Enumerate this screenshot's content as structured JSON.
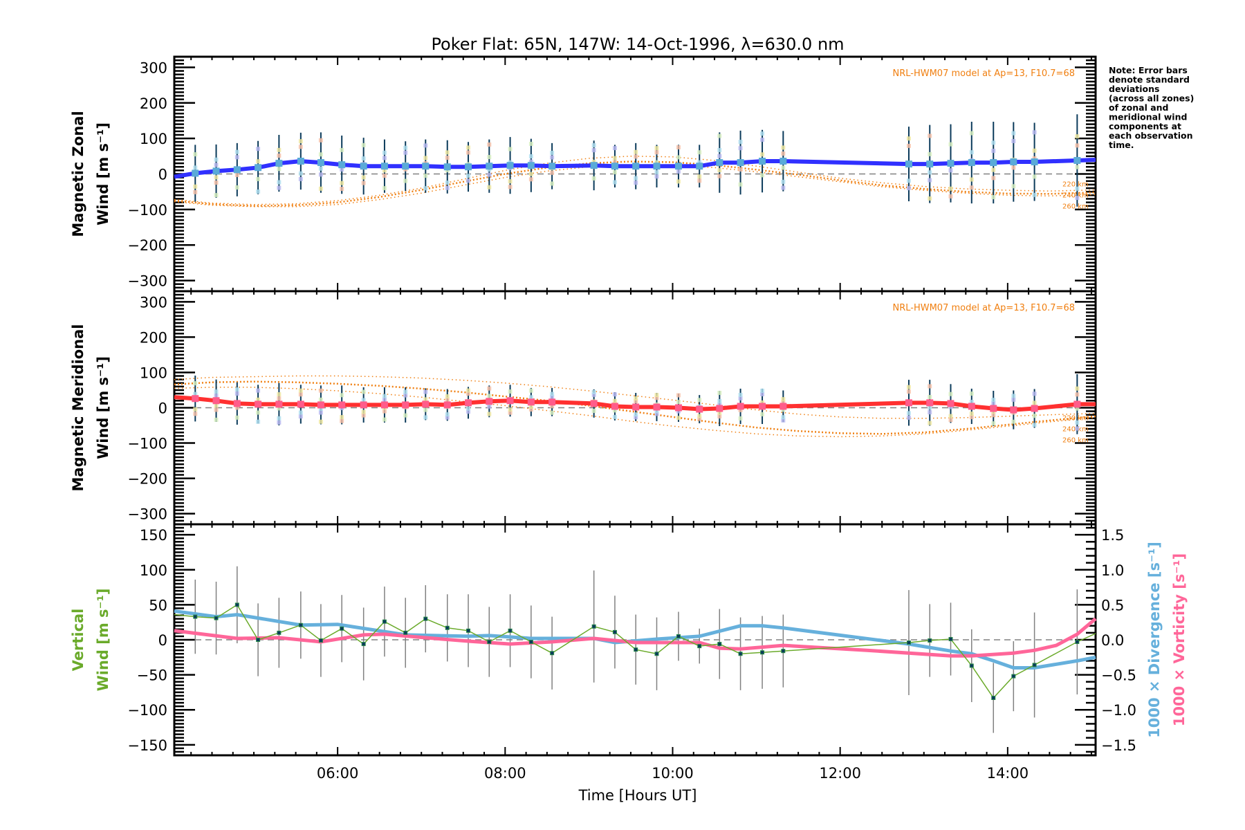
{
  "chart_data": {
    "type": "line",
    "title": "Poker Flat: 65N, 147W: 14-Oct-1996, λ=630.0 nm",
    "xlabel": "Time [Hours UT]",
    "xlim": [
      4.05,
      15.05
    ],
    "xticks": [
      {
        "value": 6,
        "label": "06:00"
      },
      {
        "value": 8,
        "label": "08:00"
      },
      {
        "value": 10,
        "label": "10:00"
      },
      {
        "value": 12,
        "label": "12:00"
      },
      {
        "value": 14,
        "label": "14:00"
      }
    ],
    "note": [
      "Note: Error bars",
      "denote standard",
      "deviations",
      "(across all zones)",
      "of zonal and",
      "meridional wind",
      "components at",
      "each observation",
      "time."
    ],
    "colors": {
      "zonal": "#3030ff",
      "meridional": "#ff3030",
      "vertical": "#6aaa2a",
      "divergence": "#66b0dc",
      "vorticity": "#ff6699",
      "model": "#f07f10",
      "errorbar_horizontal": "#0a3a5a",
      "errorbar_vertical": "#808080",
      "point": "#5aaad8",
      "point_meridional": "#ff5c8a",
      "zero_line": "#808080"
    },
    "panels": [
      {
        "id": "zonal",
        "ylabel_line1": "Magnetic Zonal",
        "ylabel_line2": "Wind [m s⁻¹]",
        "ylim": [
          -330,
          330
        ],
        "yticks": [
          -300,
          -200,
          -100,
          0,
          100,
          200,
          300
        ],
        "model_label": "NRL-HWM07 model at Ap=13, F10.7=68",
        "model_altitudes": [
          "220 km",
          "240 km",
          "260 km"
        ],
        "series": {
          "name": "Magnetic Zonal Wind",
          "x": [
            4.05,
            4.3,
            4.55,
            4.8,
            5.05,
            5.3,
            5.56,
            5.8,
            6.05,
            6.31,
            6.56,
            6.81,
            7.05,
            7.31,
            7.56,
            7.81,
            8.06,
            8.31,
            8.56,
            9.06,
            9.31,
            9.56,
            9.81,
            10.07,
            10.32,
            10.56,
            10.81,
            11.07,
            11.32,
            12.82,
            13.07,
            13.32,
            13.57,
            13.83,
            14.07,
            14.32,
            14.83,
            15.05
          ],
          "y": [
            -8,
            2,
            8,
            12,
            18,
            30,
            36,
            32,
            26,
            22,
            22,
            22,
            22,
            20,
            20,
            22,
            24,
            24,
            22,
            24,
            22,
            22,
            22,
            22,
            22,
            32,
            32,
            36,
            36,
            28,
            28,
            30,
            32,
            32,
            34,
            34,
            38,
            40
          ],
          "err": [
            0,
            80,
            75,
            75,
            75,
            80,
            80,
            85,
            82,
            80,
            75,
            70,
            75,
            75,
            70,
            75,
            80,
            75,
            65,
            70,
            60,
            65,
            60,
            60,
            60,
            85,
            90,
            88,
            85,
            105,
            110,
            110,
            115,
            115,
            112,
            110,
            130,
            0
          ]
        },
        "model": [
          {
            "name": "220 km",
            "x": [
              4.05,
              4.5,
              5.0,
              5.5,
              6.0,
              6.5,
              7.0,
              7.5,
              8.0,
              8.5,
              9.0,
              9.5,
              10.0,
              10.5,
              11.0,
              11.5,
              12.0,
              12.5,
              13.0,
              13.5,
              14.0,
              14.5,
              15.05
            ],
            "y": [
              -72,
              -82,
              -86,
              -84,
              -75,
              -60,
              -40,
              -15,
              10,
              30,
              44,
              50,
              48,
              38,
              22,
              5,
              -12,
              -25,
              -35,
              -42,
              -46,
              -48,
              -45
            ]
          },
          {
            "name": "240 km",
            "x": [
              4.05,
              4.5,
              5.0,
              5.5,
              6.0,
              6.5,
              7.0,
              7.5,
              8.0,
              8.5,
              9.0,
              9.5,
              10.0,
              10.5,
              11.0,
              11.5,
              12.0,
              12.5,
              13.0,
              13.5,
              14.0,
              14.5,
              15.05
            ],
            "y": [
              -75,
              -85,
              -90,
              -88,
              -80,
              -65,
              -45,
              -22,
              0,
              18,
              30,
              35,
              33,
              25,
              12,
              -2,
              -18,
              -32,
              -42,
              -50,
              -55,
              -56,
              -52
            ]
          },
          {
            "name": "260 km",
            "x": [
              4.05,
              4.5,
              5.0,
              5.5,
              6.0,
              6.5,
              7.0,
              7.5,
              8.0,
              8.5,
              9.0,
              9.5,
              10.0,
              10.5,
              11.0,
              11.5,
              12.0,
              12.5,
              13.0,
              13.5,
              14.0,
              14.5,
              15.05
            ],
            "y": [
              -78,
              -88,
              -92,
              -92,
              -86,
              -72,
              -54,
              -32,
              -10,
              8,
              20,
              26,
              25,
              18,
              6,
              -8,
              -22,
              -36,
              -46,
              -54,
              -60,
              -62,
              -58
            ]
          }
        ]
      },
      {
        "id": "meridional",
        "ylabel_line1": "Magnetic Meridional",
        "ylabel_line2": "Wind [m s⁻¹]",
        "ylim": [
          -330,
          330
        ],
        "yticks": [
          -300,
          -200,
          -100,
          0,
          100,
          200,
          300
        ],
        "model_label": "NRL-HWM07 model at Ap=13, F10.7=68",
        "model_altitudes": [
          "220 km",
          "240 km",
          "260 km"
        ],
        "series": {
          "name": "Magnetic Meridional Wind",
          "x": [
            4.05,
            4.3,
            4.55,
            4.8,
            5.05,
            5.3,
            5.56,
            5.8,
            6.05,
            6.31,
            6.56,
            6.81,
            7.05,
            7.31,
            7.56,
            7.81,
            8.06,
            8.31,
            8.56,
            9.06,
            9.31,
            9.56,
            9.81,
            10.07,
            10.32,
            10.56,
            10.81,
            11.07,
            11.32,
            12.82,
            13.07,
            13.32,
            13.57,
            13.83,
            14.07,
            14.32,
            14.83,
            15.05
          ],
          "y": [
            30,
            26,
            20,
            12,
            10,
            10,
            10,
            8,
            8,
            8,
            8,
            8,
            10,
            8,
            14,
            18,
            20,
            16,
            16,
            12,
            4,
            2,
            2,
            0,
            -4,
            -2,
            4,
            4,
            4,
            14,
            14,
            12,
            4,
            -2,
            -6,
            -2,
            10,
            10
          ],
          "err": [
            0,
            65,
            60,
            60,
            55,
            60,
            55,
            55,
            55,
            50,
            50,
            50,
            45,
            45,
            45,
            45,
            45,
            40,
            40,
            40,
            40,
            40,
            40,
            40,
            40,
            50,
            50,
            50,
            45,
            65,
            65,
            55,
            50,
            50,
            55,
            55,
            85,
            0
          ]
        },
        "model": [
          {
            "name": "220 km",
            "x": [
              4.05,
              4.5,
              5.0,
              5.5,
              6.0,
              6.5,
              7.0,
              7.5,
              8.0,
              8.5,
              9.0,
              9.5,
              10.0,
              10.5,
              11.0,
              11.5,
              12.0,
              12.5,
              13.0,
              13.5,
              14.0,
              14.5,
              15.05
            ],
            "y": [
              80,
              86,
              88,
              90,
              90,
              88,
              84,
              78,
              70,
              60,
              48,
              35,
              22,
              8,
              -6,
              -18,
              -26,
              -30,
              -30,
              -28,
              -24,
              -20,
              -16
            ]
          },
          {
            "name": "240 km",
            "x": [
              4.05,
              4.5,
              5.0,
              5.5,
              6.0,
              6.5,
              7.0,
              7.5,
              8.0,
              8.5,
              9.0,
              9.5,
              10.0,
              10.5,
              11.0,
              11.5,
              12.0,
              12.5,
              13.0,
              13.5,
              14.0,
              14.5,
              15.05
            ],
            "y": [
              66,
              72,
              74,
              72,
              68,
              62,
              54,
              44,
              32,
              20,
              6,
              -10,
              -26,
              -42,
              -56,
              -66,
              -72,
              -74,
              -70,
              -60,
              -48,
              -36,
              -24
            ]
          },
          {
            "name": "260 km",
            "x": [
              4.05,
              4.5,
              5.0,
              5.5,
              6.0,
              6.5,
              7.0,
              7.5,
              8.0,
              8.5,
              9.0,
              9.5,
              10.0,
              10.5,
              11.0,
              11.5,
              12.0,
              12.5,
              13.0,
              13.5,
              14.0,
              14.5,
              15.05
            ],
            "y": [
              55,
              58,
              58,
              54,
              48,
              40,
              30,
              18,
              6,
              -8,
              -22,
              -38,
              -52,
              -64,
              -74,
              -80,
              -82,
              -80,
              -74,
              -64,
              -52,
              -40,
              -28
            ]
          }
        ]
      },
      {
        "id": "vertical",
        "ylabel_line1": "Vertical",
        "ylabel_line2": "Wind [m s⁻¹]",
        "ylim": [
          -165,
          165
        ],
        "yticks": [
          -150,
          -100,
          -50,
          0,
          50,
          100,
          150
        ],
        "y2label_divergence": "1000 × Divergence [s⁻¹]",
        "y2label_vorticity": "1000 × Vorticity [s⁻¹]",
        "y2lim": [
          -1.65,
          1.65
        ],
        "y2ticks": [
          {
            "value": -1.5,
            "label": "−1.5"
          },
          {
            "value": -1.0,
            "label": "−1.0"
          },
          {
            "value": -0.5,
            "label": "−0.5"
          },
          {
            "value": 0.0,
            "label": "0.0"
          },
          {
            "value": 0.5,
            "label": "0.5"
          },
          {
            "value": 1.0,
            "label": "1.0"
          },
          {
            "value": 1.5,
            "label": "1.5"
          }
        ],
        "series": [
          {
            "name": "Vertical Wind",
            "axis": "left",
            "x": [
              4.05,
              4.3,
              4.55,
              4.8,
              5.05,
              5.3,
              5.56,
              5.8,
              6.05,
              6.31,
              6.56,
              6.81,
              7.05,
              7.31,
              7.56,
              7.81,
              8.06,
              8.31,
              8.56,
              9.06,
              9.31,
              9.56,
              9.81,
              10.07,
              10.32,
              10.56,
              10.81,
              11.07,
              11.32,
              12.82,
              13.07,
              13.32,
              13.57,
              13.83,
              14.07,
              14.32,
              14.83,
              15.05
            ],
            "y": [
              36,
              33,
              31,
              50,
              0,
              10,
              21,
              -1,
              16,
              -6,
              26,
              10,
              30,
              17,
              13,
              -3,
              13,
              -3,
              -19,
              19,
              11,
              -14,
              -20,
              5,
              -9,
              -6,
              -20,
              -18,
              -16,
              -4,
              -1,
              1,
              -37,
              -83,
              -52,
              -36,
              -3,
              9
            ],
            "err": [
              0,
              53,
              52,
              55,
              52,
              50,
              48,
              52,
              48,
              52,
              50,
              50,
              48,
              48,
              52,
              50,
              52,
              52,
              52,
              80,
              52,
              50,
              52,
              35,
              25,
              50,
              52,
              52,
              52,
              75,
              52,
              52,
              52,
              50,
              50,
              75,
              75,
              0
            ]
          },
          {
            "name": "1000 x Divergence",
            "axis": "right",
            "x": [
              4.05,
              4.55,
              4.8,
              5.56,
              6.0,
              6.81,
              7.56,
              7.81,
              8.31,
              9.06,
              9.31,
              9.81,
              10.32,
              10.81,
              11.07,
              11.32,
              12.82,
              13.32,
              13.57,
              13.83,
              14.07,
              14.32,
              14.83,
              15.05
            ],
            "y": [
              0.41,
              0.33,
              0.36,
              0.21,
              0.22,
              0.07,
              0.05,
              0.06,
              0.02,
              0.02,
              -0.04,
              0.01,
              0.05,
              0.2,
              0.2,
              0.17,
              -0.06,
              -0.16,
              -0.2,
              -0.3,
              -0.4,
              -0.4,
              -0.3,
              -0.25
            ]
          },
          {
            "name": "1000 x Vorticity",
            "axis": "right",
            "x": [
              4.05,
              4.8,
              5.3,
              5.8,
              6.31,
              6.56,
              7.05,
              7.56,
              8.06,
              8.56,
              9.06,
              9.56,
              10.32,
              10.56,
              10.81,
              11.32,
              12.32,
              13.32,
              13.57,
              14.07,
              14.32,
              14.58,
              14.83,
              15.05
            ],
            "y": [
              0.13,
              0.02,
              0.03,
              -0.03,
              0.07,
              0.08,
              0.03,
              -0.02,
              -0.06,
              -0.03,
              0.02,
              -0.04,
              -0.04,
              -0.12,
              -0.13,
              -0.08,
              -0.15,
              -0.23,
              -0.23,
              -0.19,
              -0.15,
              -0.08,
              0.08,
              0.3
            ]
          }
        ]
      }
    ]
  }
}
